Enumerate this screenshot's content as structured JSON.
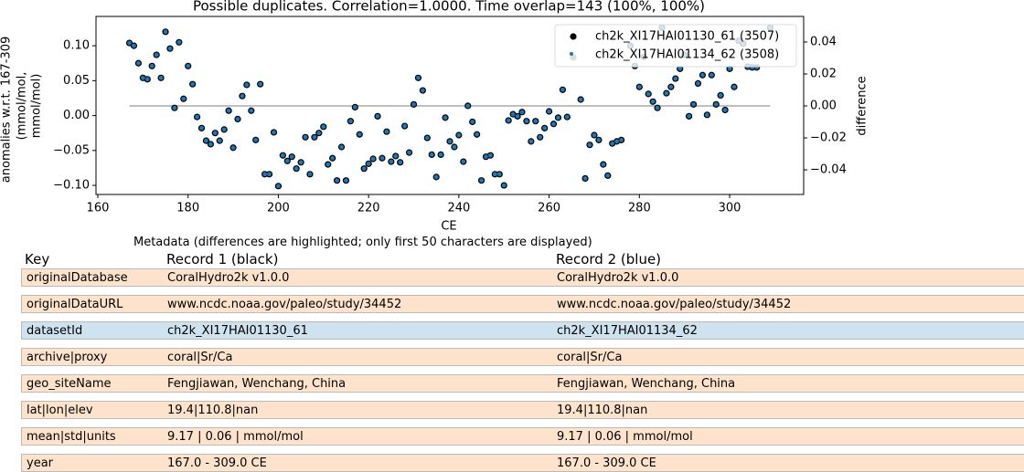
{
  "chart_data": {
    "type": "scatter",
    "title": "Possible duplicates. Correlation=1.0000. Time overlap=143 (100%, 100%)",
    "xlabel": "CE",
    "ylabel": [
      "anomalies w.r.t. 167-309",
      "(mmol/mol,",
      "mmol/mol)"
    ],
    "y2label": "difference",
    "xlim": [
      159.6,
      316.4
    ],
    "ylim": [
      -0.113,
      0.142
    ],
    "y2lim": [
      -0.0554,
      0.056
    ],
    "xticks": [
      160,
      180,
      200,
      220,
      240,
      260,
      280,
      300
    ],
    "yticks": [
      {
        "value": 0.1,
        "label": "0.10"
      },
      {
        "value": 0.05,
        "label": "0.05"
      },
      {
        "value": 0,
        "label": "0.00"
      },
      {
        "value": -0.05,
        "label": "−0.05"
      },
      {
        "value": -0.1,
        "label": "−0.10"
      }
    ],
    "y2ticks": [
      {
        "value": 0.04,
        "label": "0.04"
      },
      {
        "value": 0.02,
        "label": "0.02"
      },
      {
        "value": 0,
        "label": "0.00"
      },
      {
        "value": -0.02,
        "label": "−0.02"
      },
      {
        "value": -0.04,
        "label": "−0.04"
      }
    ],
    "legend": "upper right",
    "x": [
      167,
      168,
      169,
      170,
      171,
      172,
      173,
      174,
      175,
      176,
      177,
      178,
      179,
      180,
      181,
      182,
      183,
      184,
      185,
      186,
      187,
      188,
      189,
      190,
      191,
      192,
      193,
      194,
      195,
      196,
      197,
      198,
      199,
      200,
      201,
      202,
      203,
      204,
      205,
      206,
      207,
      208,
      209,
      210,
      211,
      212,
      213,
      214,
      215,
      216,
      217,
      218,
      219,
      220,
      221,
      222,
      223,
      224,
      225,
      226,
      227,
      228,
      229,
      230,
      231,
      232,
      233,
      234,
      235,
      236,
      237,
      238,
      239,
      240,
      241,
      242,
      243,
      244,
      245,
      246,
      247,
      248,
      249,
      250,
      251,
      252,
      253,
      254,
      255,
      256,
      257,
      258,
      259,
      260,
      261,
      262,
      263,
      264,
      267,
      268,
      269,
      270,
      271,
      272,
      273,
      274,
      275,
      276,
      278,
      279,
      280,
      281,
      282,
      283,
      284,
      285,
      286,
      287,
      288,
      289,
      290,
      291,
      292,
      293,
      294,
      295,
      296,
      297,
      298,
      299,
      300,
      301,
      302,
      303,
      304,
      305,
      306,
      309
    ],
    "series": [
      {
        "name": "ch2k_XI17HAI01130_61 (3507)",
        "color": "#000000",
        "values": [
          0.104,
          0.1,
          0.075,
          0.054,
          0.052,
          0.071,
          0.087,
          0.054,
          0.12,
          0.096,
          0.011,
          0.105,
          0.024,
          0.071,
          0.045,
          -0.002,
          -0.018,
          -0.036,
          -0.041,
          -0.025,
          -0.036,
          -0.02,
          0.007,
          -0.046,
          -0.005,
          0.028,
          0.044,
          0.007,
          -0.035,
          0.045,
          -0.084,
          -0.084,
          -0.024,
          -0.101,
          -0.057,
          -0.065,
          -0.059,
          -0.076,
          -0.067,
          -0.031,
          -0.084,
          -0.031,
          -0.025,
          -0.016,
          -0.07,
          -0.061,
          -0.093,
          -0.045,
          -0.093,
          -0.008,
          0.012,
          -0.027,
          -0.076,
          -0.069,
          -0.062,
          -0.001,
          -0.061,
          -0.023,
          -0.066,
          -0.058,
          -0.067,
          -0.015,
          -0.053,
          0.016,
          0.054,
          0.036,
          -0.032,
          -0.056,
          -0.088,
          -0.056,
          -0.003,
          -0.037,
          -0.045,
          -0.028,
          -0.066,
          0.014,
          -0.009,
          -0.027,
          -0.093,
          -0.059,
          -0.057,
          -0.084,
          -0.084,
          -0.1,
          -0.007,
          0.002,
          -0.001,
          0.005,
          -0.008,
          -0.037,
          -0.008,
          -0.031,
          -0.018,
          0.006,
          -0.012,
          -0.003,
          0.037,
          -0.002,
          0.023,
          -0.09,
          -0.042,
          -0.028,
          -0.035,
          -0.07,
          -0.086,
          -0.04,
          -0.037,
          -0.035,
          0.1,
          0.071,
          0.041,
          0.084,
          0.031,
          0.02,
          0.011,
          0.126,
          0.032,
          0.041,
          0.053,
          0.067,
          0.087,
          -0.001,
          0.016,
          0.046,
          0.058,
          0.001,
          0.058,
          0.016,
          0.029,
          0.008,
          0.067,
          0.041,
          0.107,
          0.103,
          0.07,
          0.069,
          0.069,
          0.126
        ]
      },
      {
        "name": "ch2k_XI17HAI01134_62 (3508)",
        "color": "#1f77b4",
        "values": [
          0.104,
          0.1,
          0.075,
          0.054,
          0.052,
          0.071,
          0.087,
          0.054,
          0.12,
          0.096,
          0.011,
          0.105,
          0.024,
          0.071,
          0.045,
          -0.002,
          -0.018,
          -0.036,
          -0.041,
          -0.025,
          -0.036,
          -0.02,
          0.007,
          -0.046,
          -0.005,
          0.028,
          0.044,
          0.007,
          -0.035,
          0.045,
          -0.084,
          -0.084,
          -0.024,
          -0.101,
          -0.057,
          -0.065,
          -0.059,
          -0.076,
          -0.067,
          -0.031,
          -0.084,
          -0.031,
          -0.025,
          -0.016,
          -0.07,
          -0.061,
          -0.093,
          -0.045,
          -0.093,
          -0.008,
          0.012,
          -0.027,
          -0.076,
          -0.069,
          -0.062,
          -0.001,
          -0.061,
          -0.023,
          -0.066,
          -0.058,
          -0.067,
          -0.015,
          -0.053,
          0.016,
          0.054,
          0.036,
          -0.032,
          -0.056,
          -0.088,
          -0.056,
          -0.003,
          -0.037,
          -0.045,
          -0.028,
          -0.066,
          0.014,
          -0.009,
          -0.027,
          -0.093,
          -0.059,
          -0.057,
          -0.084,
          -0.084,
          -0.1,
          -0.007,
          0.002,
          -0.001,
          0.005,
          -0.008,
          -0.037,
          -0.008,
          -0.031,
          -0.018,
          0.006,
          -0.012,
          -0.003,
          0.037,
          -0.002,
          0.023,
          -0.09,
          -0.042,
          -0.028,
          -0.035,
          -0.07,
          -0.086,
          -0.04,
          -0.037,
          -0.035,
          0.1,
          0.071,
          0.041,
          0.084,
          0.031,
          0.02,
          0.011,
          0.126,
          0.032,
          0.041,
          0.053,
          0.067,
          0.087,
          -0.001,
          0.016,
          0.046,
          0.058,
          0.001,
          0.058,
          0.016,
          0.029,
          0.008,
          0.067,
          0.041,
          0.107,
          0.103,
          0.07,
          0.069,
          0.069,
          0.126
        ]
      }
    ],
    "difference": {
      "axis": "y2",
      "color": "#aaaaaa",
      "x": [
        167,
        309
      ],
      "values": [
        0,
        0
      ]
    }
  },
  "table": {
    "title": "Metadata (differences are highlighted; only first 50 characters are displayed)",
    "header": [
      "Key",
      "Record 1 (black)",
      "Record 2 (blue)"
    ],
    "rows": [
      {
        "color": "#fde3cc",
        "cells": [
          "originalDatabase",
          "CoralHydro2k v1.0.0",
          "CoralHydro2k v1.0.0"
        ]
      },
      {
        "color": "#fde3cc",
        "cells": [
          "originalDataURL",
          "www.ncdc.noaa.gov/paleo/study/34452",
          "www.ncdc.noaa.gov/paleo/study/34452"
        ]
      },
      {
        "color": "#cfe2ef",
        "cells": [
          "datasetId",
          "ch2k_XI17HAI01130_61",
          "ch2k_XI17HAI01134_62"
        ]
      },
      {
        "color": "#fde3cc",
        "cells": [
          "archive|proxy",
          "coral|Sr/Ca",
          "coral|Sr/Ca"
        ]
      },
      {
        "color": "#fde3cc",
        "cells": [
          "geo_siteName",
          "Fengjiawan, Wenchang, China",
          "Fengjiawan, Wenchang, China"
        ]
      },
      {
        "color": "#fde3cc",
        "cells": [
          "lat|lon|elev",
          "19.4|110.8|nan",
          "19.4|110.8|nan"
        ]
      },
      {
        "color": "#fde3cc",
        "cells": [
          "mean|std|units",
          "9.17 | 0.06 | mmol/mol",
          "9.17 | 0.06 | mmol/mol"
        ]
      },
      {
        "color": "#fde3cc",
        "cells": [
          "year",
          "167.0 - 309.0 CE",
          "167.0 - 309.0 CE"
        ]
      }
    ]
  }
}
